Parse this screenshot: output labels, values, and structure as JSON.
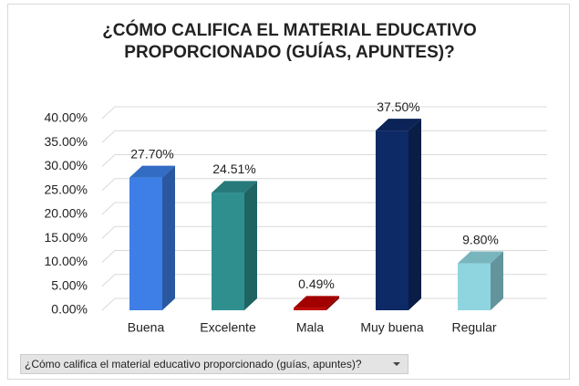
{
  "chart_data": {
    "type": "bar3d",
    "title": "¿CÓMO CALIFICA EL MATERIAL EDUCATIVO\nPROPORCIONADO (GUÍAS, APUNTES)?",
    "categories": [
      "Buena",
      "Excelente",
      "Mala",
      "Muy buena",
      "Regular"
    ],
    "values": [
      27.7,
      24.51,
      0.49,
      37.5,
      9.8
    ],
    "value_labels": [
      "27.70%",
      "24.51%",
      "0.49%",
      "37.50%",
      "9.80%"
    ],
    "colors": [
      "#3d7fe6",
      "#2f8f8f",
      "#c00000",
      "#0e2a66",
      "#8fd5df"
    ],
    "ylim": [
      0,
      40
    ],
    "yticks": [
      {
        "value": 0,
        "label": "0.00%"
      },
      {
        "value": 5,
        "label": "5.00%"
      },
      {
        "value": 10,
        "label": "10.00%"
      },
      {
        "value": 15,
        "label": "15.00%"
      },
      {
        "value": 20,
        "label": "20.00%"
      },
      {
        "value": 25,
        "label": "25.00%"
      },
      {
        "value": 30,
        "label": "30.00%"
      },
      {
        "value": 35,
        "label": "35.00%"
      },
      {
        "value": 40,
        "label": "40.00%"
      }
    ],
    "grid": true
  },
  "filter": {
    "label": "¿Cómo califica el material educativo proporcionado (guías, apuntes)?"
  }
}
